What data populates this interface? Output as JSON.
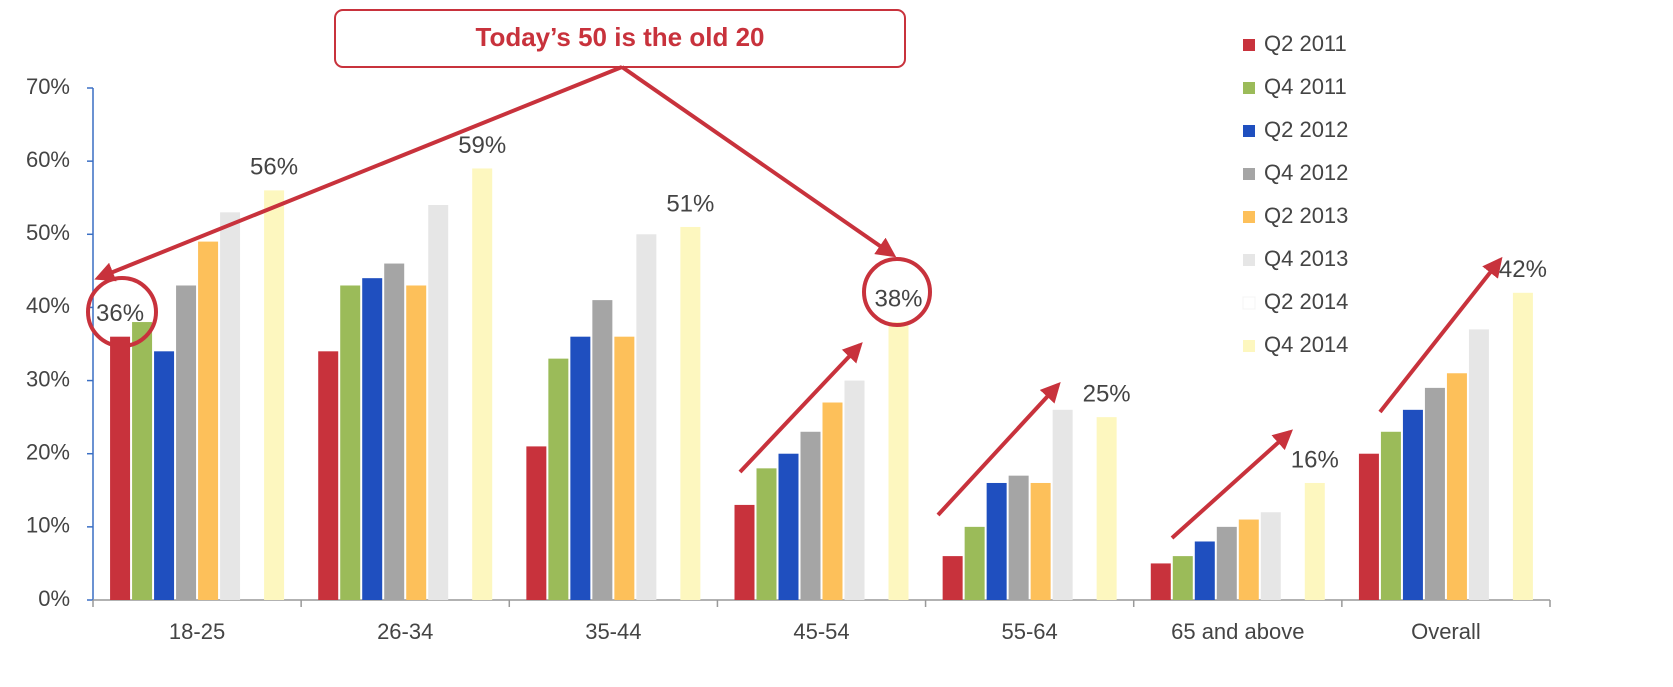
{
  "chart_data": {
    "type": "bar",
    "annotation": "Today’s 50 is the old 20",
    "categories": [
      "18-25",
      "26-34",
      "35-44",
      "45-54",
      "55-64",
      "65 and above",
      "Overall"
    ],
    "series": [
      {
        "name": "Q2 2011",
        "color": "#c8323c",
        "values": [
          36,
          34,
          21,
          13,
          6,
          5,
          20
        ],
        "value_labels": [
          "36%",
          null,
          null,
          null,
          null,
          null,
          null
        ]
      },
      {
        "name": "Q4 2011",
        "color": "#9bbb59",
        "values": [
          38,
          43,
          33,
          18,
          10,
          6,
          23
        ]
      },
      {
        "name": "Q2 2012",
        "color": "#1f4fbf",
        "values": [
          34,
          44,
          36,
          20,
          16,
          8,
          26
        ]
      },
      {
        "name": "Q4 2012",
        "color": "#a5a5a5",
        "values": [
          43,
          46,
          41,
          23,
          17,
          10,
          29
        ]
      },
      {
        "name": "Q2 2013",
        "color": "#fdc05a",
        "values": [
          49,
          43,
          36,
          27,
          16,
          11,
          31
        ]
      },
      {
        "name": "Q4 2013",
        "color": "#e6e6e6",
        "values": [
          53,
          54,
          50,
          30,
          26,
          12,
          37
        ]
      },
      {
        "name": "Q2 2014",
        "color": "#ffffff",
        "values": [
          null,
          null,
          null,
          null,
          null,
          null,
          null
        ]
      },
      {
        "name": "Q4 2014",
        "color": "#fdf7bf",
        "values": [
          56,
          59,
          51,
          38,
          25,
          16,
          42
        ],
        "value_labels": [
          "56%",
          "59%",
          "51%",
          "38%",
          "25%",
          "16%",
          "42%"
        ]
      }
    ],
    "ylim": [
      0,
      70
    ],
    "yticks": [
      {
        "value": 0,
        "label": "0%"
      },
      {
        "value": 10,
        "label": "10%"
      },
      {
        "value": 20,
        "label": "20%"
      },
      {
        "value": 30,
        "label": "30%"
      },
      {
        "value": 40,
        "label": "40%"
      },
      {
        "value": 50,
        "label": "50%"
      },
      {
        "value": 60,
        "label": "60%"
      },
      {
        "value": 70,
        "label": "70%"
      }
    ],
    "legend": "right"
  }
}
